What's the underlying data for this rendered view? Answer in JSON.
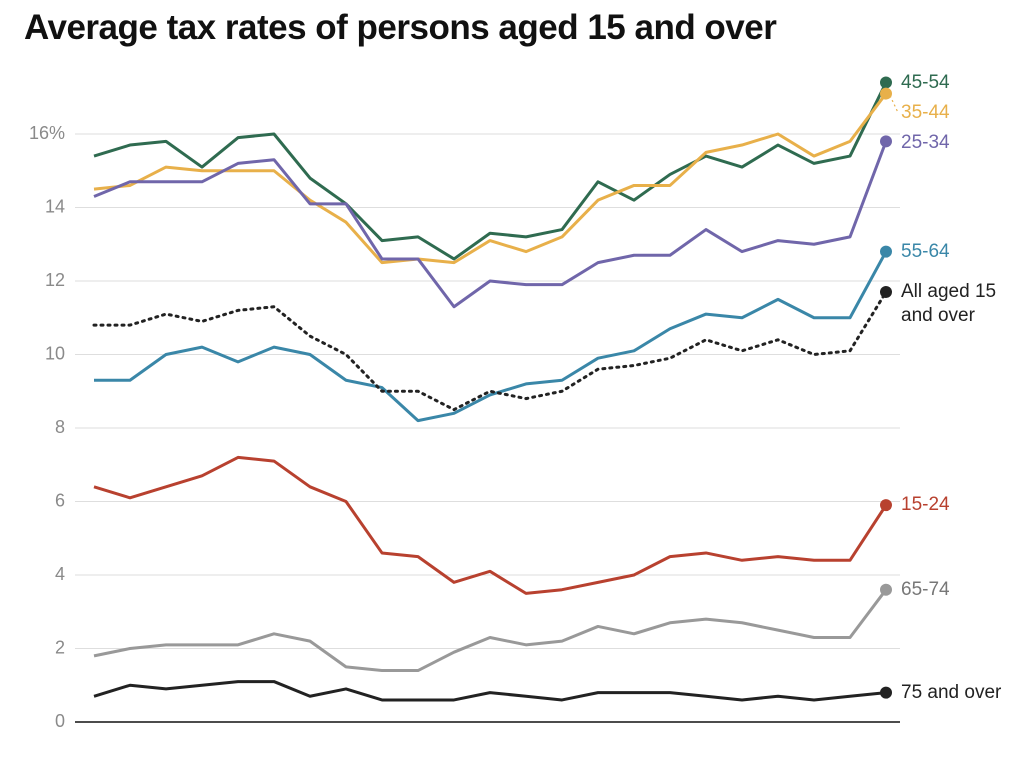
{
  "chart_data": {
    "type": "line",
    "title": "Average tax rates of persons aged 15 and over",
    "categories": [
      null,
      null,
      null,
      null,
      null,
      null,
      null,
      null,
      null,
      null,
      null,
      null,
      null,
      null,
      null,
      null,
      null,
      null,
      null,
      null,
      null,
      null,
      null
    ],
    "ylim": [
      0,
      18
    ],
    "yticks": [
      0,
      2,
      4,
      6,
      8,
      10,
      12,
      14,
      {
        "value": 16,
        "label": "16%"
      }
    ],
    "grid": true,
    "series": [
      {
        "name": "45-54",
        "color": "#2f6b50",
        "values": [
          15.4,
          15.7,
          15.8,
          15.1,
          15.9,
          16.0,
          14.8,
          14.1,
          13.1,
          13.2,
          12.6,
          13.3,
          13.2,
          13.4,
          14.7,
          14.2,
          14.9,
          15.4,
          15.1,
          15.7,
          15.2,
          15.4,
          17.4
        ]
      },
      {
        "name": "35-44",
        "color": "#e8b04a",
        "values": [
          14.5,
          14.6,
          15.1,
          15.0,
          15.0,
          15.0,
          14.2,
          13.6,
          12.5,
          12.6,
          12.5,
          13.1,
          12.8,
          13.2,
          14.2,
          14.6,
          14.6,
          15.5,
          15.7,
          16.0,
          15.4,
          15.8,
          17.1
        ]
      },
      {
        "name": "25-34",
        "color": "#7066aa",
        "values": [
          14.3,
          14.7,
          14.7,
          14.7,
          15.2,
          15.3,
          14.1,
          14.1,
          12.6,
          12.6,
          11.3,
          12.0,
          11.9,
          11.9,
          12.5,
          12.7,
          12.7,
          13.4,
          12.8,
          13.1,
          13.0,
          13.2,
          15.8
        ]
      },
      {
        "name": "55-64",
        "color": "#3a87a8",
        "values": [
          9.3,
          9.3,
          10.0,
          10.2,
          9.8,
          10.2,
          10.0,
          9.3,
          9.1,
          8.2,
          8.4,
          8.9,
          9.2,
          9.3,
          9.9,
          10.1,
          10.7,
          11.1,
          11.0,
          11.5,
          11.0,
          11.0,
          12.8
        ]
      },
      {
        "name": "All aged 15 and over",
        "color": "#222222",
        "dash": "dotted",
        "values": [
          10.8,
          10.8,
          11.1,
          10.9,
          11.2,
          11.3,
          10.5,
          10.0,
          9.0,
          9.0,
          8.5,
          9.0,
          8.8,
          9.0,
          9.6,
          9.7,
          9.9,
          10.4,
          10.1,
          10.4,
          10.0,
          10.1,
          11.7
        ]
      },
      {
        "name": "15-24",
        "color": "#b8412f",
        "values": [
          6.4,
          6.1,
          6.4,
          6.7,
          7.2,
          7.1,
          6.4,
          6.0,
          4.6,
          4.5,
          3.8,
          4.1,
          3.5,
          3.6,
          3.8,
          4.0,
          4.5,
          4.6,
          4.4,
          4.5,
          4.4,
          4.4,
          5.9
        ]
      },
      {
        "name": "65-74",
        "color": "#999999",
        "values": [
          1.8,
          2.0,
          2.1,
          2.1,
          2.1,
          2.4,
          2.2,
          1.5,
          1.4,
          1.4,
          1.9,
          2.3,
          2.1,
          2.2,
          2.6,
          2.4,
          2.7,
          2.8,
          2.7,
          2.5,
          2.3,
          2.3,
          3.6
        ]
      },
      {
        "name": "75 and over",
        "color": "#222222",
        "values": [
          0.7,
          1.0,
          0.9,
          1.0,
          1.1,
          1.1,
          0.7,
          0.9,
          0.6,
          0.6,
          0.6,
          0.8,
          0.7,
          0.6,
          0.8,
          0.8,
          0.8,
          0.7,
          0.6,
          0.7,
          0.6,
          0.7,
          0.8
        ]
      }
    ]
  }
}
